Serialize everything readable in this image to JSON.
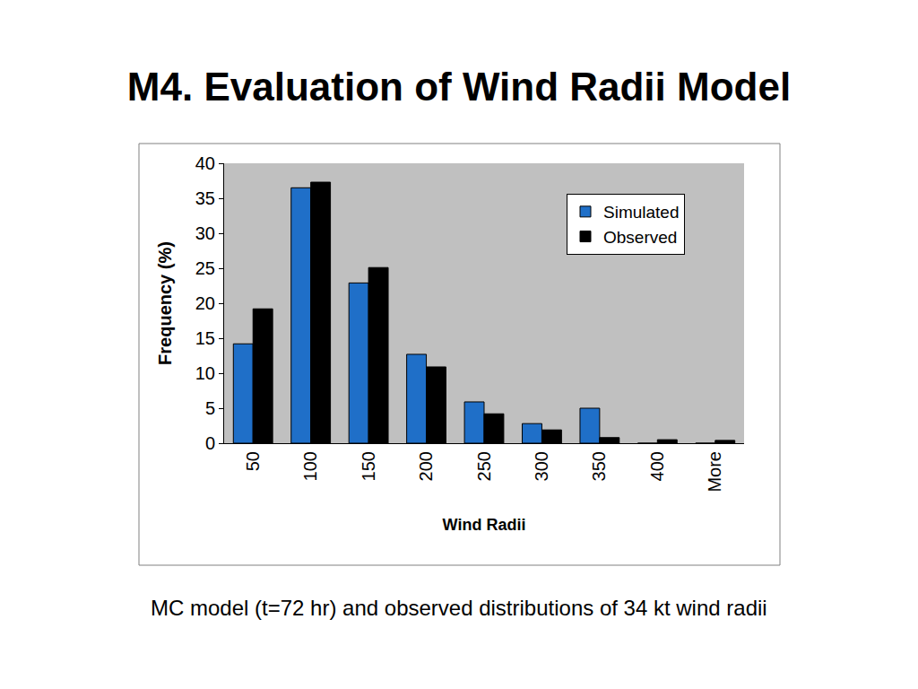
{
  "chart_data": {
    "type": "bar",
    "title": "M4. Evaluation of Wind Radii Model",
    "caption": "MC model (t=72 hr) and observed distributions of 34 kt wind radii",
    "x_label": "Wind Radii",
    "y_label": "Frequency (%)",
    "categories": [
      "50",
      "100",
      "150",
      "200",
      "250",
      "300",
      "350",
      "400",
      "More"
    ],
    "series": [
      {
        "name": "Simulated",
        "color": "#1f6fc8",
        "values": [
          14.2,
          36.5,
          22.9,
          12.7,
          5.9,
          2.8,
          5.0,
          0,
          0
        ]
      },
      {
        "name": "Observed",
        "color": "#000000",
        "values": [
          19.2,
          37.3,
          25.1,
          10.9,
          4.2,
          1.9,
          0.8,
          0.5,
          0.4
        ]
      }
    ],
    "ylim": [
      0,
      40
    ],
    "yticks": [
      0,
      5,
      10,
      15,
      20,
      25,
      30,
      35,
      40
    ],
    "grid": false,
    "legend": "upper right"
  }
}
